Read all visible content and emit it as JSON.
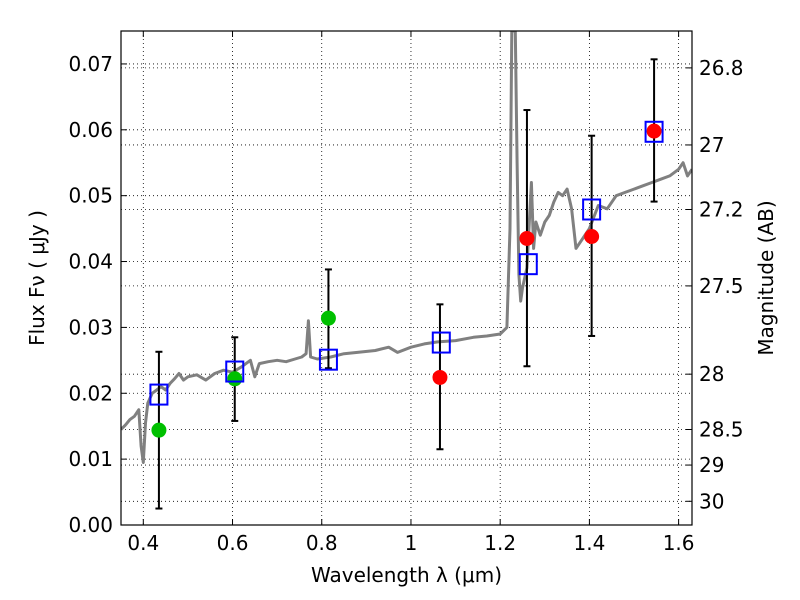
{
  "chart_data": {
    "type": "scatter",
    "xlabel": "Wavelength  λ (μm)",
    "ylabel": "Flux  Fν  ( μJy )",
    "ylabel_right": "Magnitude (AB)",
    "xlim": [
      0.35,
      1.63
    ],
    "ylim": [
      0.0,
      0.075
    ],
    "grid": true,
    "x_ticks": [
      0.4,
      0.6,
      0.8,
      1.0,
      1.2,
      1.4,
      1.6
    ],
    "x_tick_labels": [
      "0.4",
      "0.6",
      "0.8",
      "1",
      "1.2",
      "1.4",
      "1.6"
    ],
    "y_ticks": [
      0.0,
      0.01,
      0.02,
      0.03,
      0.04,
      0.05,
      0.06,
      0.07
    ],
    "y_tick_labels": [
      "0.00",
      "0.01",
      "0.02",
      "0.03",
      "0.04",
      "0.05",
      "0.06",
      "0.07"
    ],
    "right_ticks": [
      {
        "label": "26.8",
        "flux": 0.0694
      },
      {
        "label": "27",
        "flux": 0.0577
      },
      {
        "label": "27.2",
        "flux": 0.0479
      },
      {
        "label": "27.5",
        "flux": 0.0363
      },
      {
        "label": "28",
        "flux": 0.0229
      },
      {
        "label": "28.5",
        "flux": 0.0145
      },
      {
        "label": "29",
        "flux": 0.0091
      },
      {
        "label": "30",
        "flux": 0.0036
      }
    ],
    "colors": {
      "spectrum": "#808080",
      "green_points": "#00c000",
      "red_points": "#ff0000",
      "model_squares": "#0000ff",
      "errorbars": "#000000"
    },
    "spectrum": [
      [
        0.35,
        0.0145
      ],
      [
        0.36,
        0.0152
      ],
      [
        0.37,
        0.016
      ],
      [
        0.38,
        0.0165
      ],
      [
        0.39,
        0.0175
      ],
      [
        0.395,
        0.012
      ],
      [
        0.4,
        0.0095
      ],
      [
        0.405,
        0.0155
      ],
      [
        0.41,
        0.0185
      ],
      [
        0.42,
        0.02
      ],
      [
        0.43,
        0.0205
      ],
      [
        0.44,
        0.021
      ],
      [
        0.45,
        0.0205
      ],
      [
        0.46,
        0.0215
      ],
      [
        0.47,
        0.0222
      ],
      [
        0.48,
        0.023
      ],
      [
        0.49,
        0.022
      ],
      [
        0.5,
        0.0225
      ],
      [
        0.52,
        0.0228
      ],
      [
        0.54,
        0.022
      ],
      [
        0.56,
        0.023
      ],
      [
        0.58,
        0.0235
      ],
      [
        0.6,
        0.0232
      ],
      [
        0.62,
        0.024
      ],
      [
        0.64,
        0.025
      ],
      [
        0.65,
        0.0225
      ],
      [
        0.66,
        0.0245
      ],
      [
        0.68,
        0.0248
      ],
      [
        0.7,
        0.025
      ],
      [
        0.72,
        0.0248
      ],
      [
        0.74,
        0.0252
      ],
      [
        0.755,
        0.0255
      ],
      [
        0.765,
        0.026
      ],
      [
        0.77,
        0.031
      ],
      [
        0.775,
        0.0255
      ],
      [
        0.79,
        0.0252
      ],
      [
        0.82,
        0.0255
      ],
      [
        0.85,
        0.026
      ],
      [
        0.88,
        0.0262
      ],
      [
        0.92,
        0.0265
      ],
      [
        0.95,
        0.027
      ],
      [
        0.97,
        0.0262
      ],
      [
        1.0,
        0.027
      ],
      [
        1.03,
        0.0275
      ],
      [
        1.06,
        0.0278
      ],
      [
        1.1,
        0.028
      ],
      [
        1.14,
        0.0285
      ],
      [
        1.17,
        0.0287
      ],
      [
        1.2,
        0.029
      ],
      [
        1.215,
        0.03
      ],
      [
        1.222,
        0.045
      ],
      [
        1.226,
        0.075
      ],
      [
        1.234,
        0.075
      ],
      [
        1.238,
        0.055
      ],
      [
        1.242,
        0.038
      ],
      [
        1.246,
        0.034
      ],
      [
        1.25,
        0.036
      ],
      [
        1.26,
        0.039
      ],
      [
        1.27,
        0.052
      ],
      [
        1.275,
        0.042
      ],
      [
        1.28,
        0.046
      ],
      [
        1.29,
        0.044
      ],
      [
        1.3,
        0.046
      ],
      [
        1.31,
        0.047
      ],
      [
        1.32,
        0.049
      ],
      [
        1.33,
        0.0505
      ],
      [
        1.34,
        0.05
      ],
      [
        1.35,
        0.051
      ],
      [
        1.36,
        0.048
      ],
      [
        1.365,
        0.045
      ],
      [
        1.37,
        0.042
      ],
      [
        1.38,
        0.043
      ],
      [
        1.4,
        0.045
      ],
      [
        1.42,
        0.0485
      ],
      [
        1.44,
        0.048
      ],
      [
        1.46,
        0.05
      ],
      [
        1.48,
        0.0505
      ],
      [
        1.5,
        0.051
      ],
      [
        1.52,
        0.0515
      ],
      [
        1.54,
        0.052
      ],
      [
        1.56,
        0.0525
      ],
      [
        1.58,
        0.053
      ],
      [
        1.6,
        0.054
      ],
      [
        1.61,
        0.055
      ],
      [
        1.62,
        0.053
      ],
      [
        1.63,
        0.054
      ]
    ],
    "green_points": [
      {
        "x": 0.435,
        "y": 0.0144
      },
      {
        "x": 0.605,
        "y": 0.0222
      },
      {
        "x": 0.815,
        "y": 0.0314
      }
    ],
    "red_points": [
      {
        "x": 1.065,
        "y": 0.0224
      },
      {
        "x": 1.26,
        "y": 0.0435
      },
      {
        "x": 1.405,
        "y": 0.0438
      },
      {
        "x": 1.545,
        "y": 0.0598
      }
    ],
    "errorbars": [
      {
        "x": 0.435,
        "ylow": 0.0025,
        "yhigh": 0.0263
      },
      {
        "x": 0.605,
        "ylow": 0.0158,
        "yhigh": 0.0285
      },
      {
        "x": 0.815,
        "ylow": 0.0238,
        "yhigh": 0.0388
      },
      {
        "x": 1.065,
        "ylow": 0.0115,
        "yhigh": 0.0335
      },
      {
        "x": 1.26,
        "ylow": 0.0241,
        "yhigh": 0.063
      },
      {
        "x": 1.405,
        "ylow": 0.0287,
        "yhigh": 0.0591
      },
      {
        "x": 1.545,
        "ylow": 0.0491,
        "yhigh": 0.0707
      }
    ],
    "model_squares": [
      {
        "x": 0.435,
        "y": 0.0198
      },
      {
        "x": 0.605,
        "y": 0.0233
      },
      {
        "x": 0.815,
        "y": 0.0251
      },
      {
        "x": 1.068,
        "y": 0.0277
      },
      {
        "x": 1.263,
        "y": 0.0396
      },
      {
        "x": 1.405,
        "y": 0.0479
      },
      {
        "x": 1.545,
        "y": 0.0597
      }
    ]
  }
}
